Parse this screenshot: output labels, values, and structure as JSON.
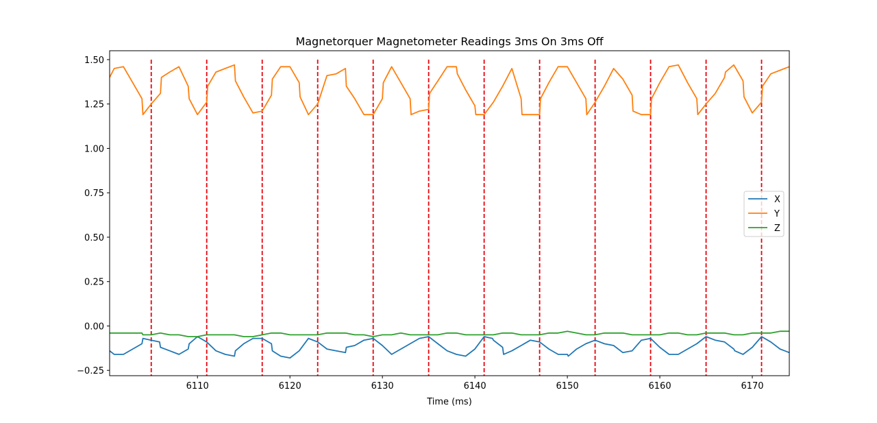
{
  "chart_data": {
    "type": "line",
    "title": "Magnetorquer Magnetometer Readings 3ms On 3ms Off",
    "xlabel": "Time (ms)",
    "ylabel": "",
    "xlim": [
      6100.5,
      6174
    ],
    "ylim": [
      -0.28,
      1.55
    ],
    "xticks": [
      6110,
      6120,
      6130,
      6140,
      6150,
      6160,
      6170
    ],
    "yticks": [
      -0.25,
      0.0,
      0.25,
      0.5,
      0.75,
      1.0,
      1.25,
      1.5
    ],
    "ytick_labels": [
      "−0.25",
      "0.00",
      "0.25",
      "0.50",
      "0.75",
      "1.00",
      "1.25",
      "1.50"
    ],
    "grid": false,
    "legend_position": "center-right",
    "vlines": {
      "x": [
        6105,
        6111,
        6117,
        6123,
        6129,
        6135,
        6141,
        6147,
        6153,
        6159,
        6165,
        6171
      ],
      "color": "#e8000b",
      "style": "dashed"
    },
    "series": [
      {
        "name": "X",
        "color": "#1f77b4",
        "x": [
          6100.5,
          6101,
          6102,
          6103,
          6104,
          6104.1,
          6105,
          6105.9,
          6106,
          6107,
          6108,
          6109,
          6109.1,
          6110,
          6111,
          6112,
          6113,
          6114,
          6114.1,
          6115,
          6116,
          6117,
          6118,
          6118.1,
          6119,
          6120,
          6121,
          6122,
          6123,
          6124,
          6125,
          6126,
          6126.1,
          6127,
          6128,
          6129,
          6130,
          6131,
          6132,
          6133,
          6134,
          6135,
          6136,
          6137,
          6138,
          6139,
          6140,
          6141,
          6141.9,
          6142,
          6143,
          6143.1,
          6144,
          6145,
          6146,
          6147,
          6148,
          6149,
          6150,
          6150.1,
          6151,
          6152,
          6153,
          6154,
          6155,
          6156,
          6157,
          6158,
          6159,
          6160,
          6161,
          6162,
          6163,
          6164,
          6165,
          6166,
          6167,
          6168,
          6168.1,
          6169,
          6170,
          6171,
          6172,
          6173,
          6174
        ],
        "y": [
          -0.14,
          -0.16,
          -0.16,
          -0.13,
          -0.1,
          -0.07,
          -0.08,
          -0.09,
          -0.12,
          -0.14,
          -0.16,
          -0.13,
          -0.1,
          -0.06,
          -0.09,
          -0.14,
          -0.16,
          -0.17,
          -0.14,
          -0.1,
          -0.07,
          -0.07,
          -0.1,
          -0.14,
          -0.17,
          -0.18,
          -0.14,
          -0.07,
          -0.09,
          -0.13,
          -0.14,
          -0.15,
          -0.12,
          -0.11,
          -0.08,
          -0.07,
          -0.11,
          -0.16,
          -0.13,
          -0.1,
          -0.07,
          -0.06,
          -0.1,
          -0.14,
          -0.16,
          -0.17,
          -0.13,
          -0.06,
          -0.07,
          -0.08,
          -0.12,
          -0.16,
          -0.14,
          -0.11,
          -0.08,
          -0.09,
          -0.13,
          -0.16,
          -0.16,
          -0.17,
          -0.13,
          -0.1,
          -0.08,
          -0.1,
          -0.11,
          -0.15,
          -0.14,
          -0.08,
          -0.07,
          -0.12,
          -0.16,
          -0.16,
          -0.13,
          -0.1,
          -0.06,
          -0.08,
          -0.09,
          -0.13,
          -0.14,
          -0.16,
          -0.12,
          -0.06,
          -0.09,
          -0.13,
          -0.15
        ]
      },
      {
        "name": "Y",
        "color": "#ff7f0e",
        "x": [
          6100.5,
          6101,
          6102,
          6103,
          6104,
          6104.1,
          6105,
          6106,
          6106.1,
          6107,
          6108,
          6109,
          6109.1,
          6110,
          6111,
          6111.1,
          6112,
          6113,
          6114,
          6114.1,
          6115,
          6116,
          6117,
          6118,
          6118.1,
          6119,
          6120,
          6121,
          6121.1,
          6122,
          6123,
          6124,
          6125,
          6126,
          6126.1,
          6127,
          6128,
          6129,
          6130,
          6130.1,
          6131,
          6132,
          6133,
          6133.1,
          6134,
          6135,
          6135.1,
          6136,
          6137,
          6138,
          6138.1,
          6139,
          6140,
          6140.1,
          6141,
          6142,
          6143,
          6144,
          6145,
          6145.1,
          6146,
          6147,
          6147.1,
          6148,
          6149,
          6150,
          6151,
          6152,
          6152.1,
          6153,
          6154,
          6155,
          6156,
          6157,
          6157.1,
          6158,
          6159,
          6159.1,
          6160,
          6161,
          6162,
          6163,
          6164,
          6164.1,
          6165,
          6166,
          6167,
          6167.1,
          6168,
          6169,
          6169.1,
          6170,
          6171,
          6171.1,
          6172,
          6173,
          6174
        ],
        "y": [
          1.4,
          1.45,
          1.46,
          1.37,
          1.28,
          1.19,
          1.25,
          1.31,
          1.4,
          1.43,
          1.46,
          1.35,
          1.28,
          1.19,
          1.26,
          1.35,
          1.43,
          1.45,
          1.47,
          1.38,
          1.29,
          1.2,
          1.21,
          1.3,
          1.39,
          1.46,
          1.46,
          1.37,
          1.29,
          1.19,
          1.25,
          1.41,
          1.42,
          1.45,
          1.35,
          1.28,
          1.19,
          1.19,
          1.28,
          1.37,
          1.46,
          1.37,
          1.28,
          1.19,
          1.21,
          1.22,
          1.31,
          1.38,
          1.46,
          1.46,
          1.42,
          1.33,
          1.24,
          1.19,
          1.19,
          1.26,
          1.35,
          1.45,
          1.28,
          1.19,
          1.19,
          1.19,
          1.28,
          1.37,
          1.46,
          1.46,
          1.37,
          1.28,
          1.19,
          1.26,
          1.35,
          1.45,
          1.39,
          1.3,
          1.21,
          1.19,
          1.19,
          1.28,
          1.37,
          1.46,
          1.47,
          1.37,
          1.28,
          1.19,
          1.25,
          1.31,
          1.4,
          1.43,
          1.47,
          1.38,
          1.29,
          1.2,
          1.26,
          1.35,
          1.42,
          1.44,
          1.46
        ]
      },
      {
        "name": "Z",
        "color": "#2ca02c",
        "x": [
          6100.5,
          6102,
          6104,
          6104.1,
          6105,
          6106,
          6107,
          6108,
          6109,
          6110,
          6111,
          6112,
          6113,
          6114,
          6115,
          6116,
          6117,
          6118,
          6119,
          6120,
          6121,
          6122,
          6123,
          6124,
          6125,
          6126,
          6127,
          6128,
          6129,
          6130,
          6131,
          6132,
          6133,
          6134,
          6135,
          6136,
          6137,
          6138,
          6139,
          6140,
          6141,
          6142,
          6143,
          6144,
          6145,
          6146,
          6147,
          6148,
          6149,
          6150,
          6151,
          6152,
          6153,
          6154,
          6155,
          6156,
          6157,
          6158,
          6159,
          6160,
          6161,
          6162,
          6163,
          6164,
          6165,
          6166,
          6167,
          6168,
          6169,
          6170,
          6171,
          6172,
          6173,
          6174
        ],
        "y": [
          -0.04,
          -0.04,
          -0.04,
          -0.05,
          -0.05,
          -0.04,
          -0.05,
          -0.05,
          -0.06,
          -0.06,
          -0.05,
          -0.05,
          -0.05,
          -0.05,
          -0.06,
          -0.06,
          -0.05,
          -0.04,
          -0.04,
          -0.05,
          -0.05,
          -0.05,
          -0.05,
          -0.04,
          -0.04,
          -0.04,
          -0.05,
          -0.05,
          -0.06,
          -0.05,
          -0.05,
          -0.04,
          -0.05,
          -0.05,
          -0.05,
          -0.05,
          -0.04,
          -0.04,
          -0.05,
          -0.05,
          -0.05,
          -0.05,
          -0.04,
          -0.04,
          -0.05,
          -0.05,
          -0.05,
          -0.04,
          -0.04,
          -0.03,
          -0.04,
          -0.05,
          -0.05,
          -0.04,
          -0.04,
          -0.04,
          -0.05,
          -0.05,
          -0.05,
          -0.05,
          -0.04,
          -0.04,
          -0.05,
          -0.05,
          -0.04,
          -0.04,
          -0.04,
          -0.05,
          -0.05,
          -0.04,
          -0.04,
          -0.04,
          -0.03,
          -0.03
        ]
      }
    ]
  }
}
